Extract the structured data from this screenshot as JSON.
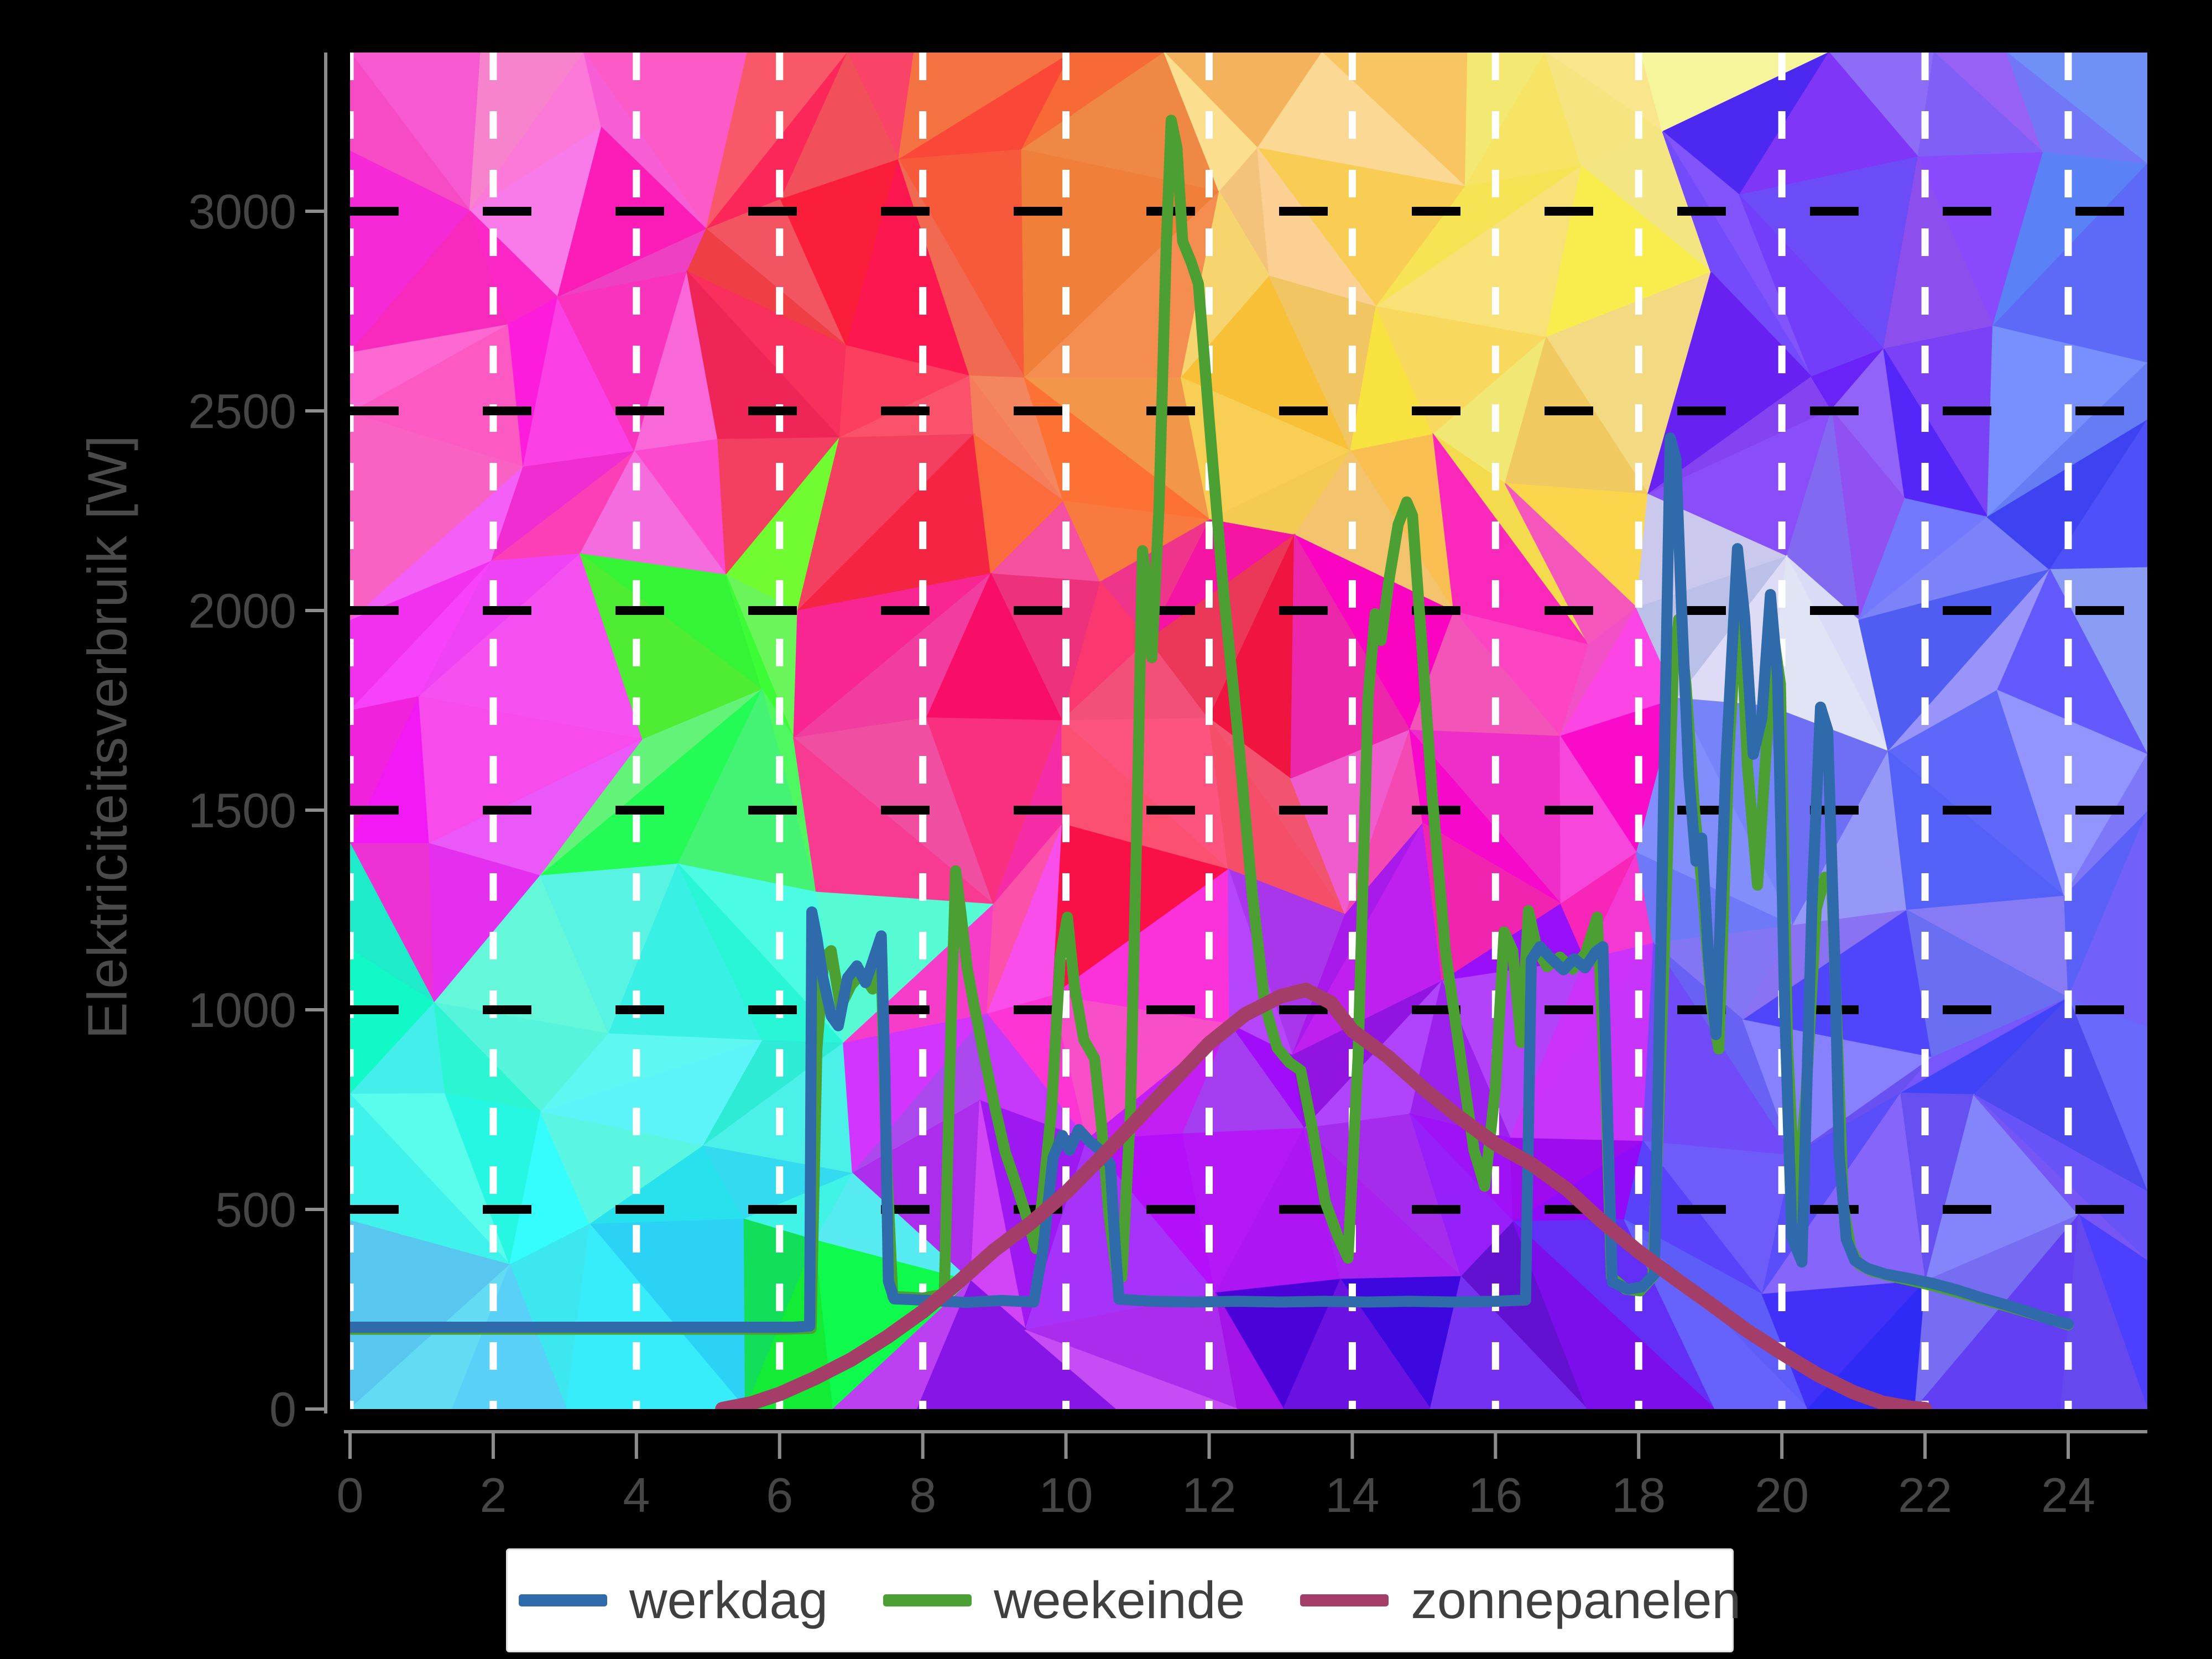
{
  "chart_data": {
    "type": "line",
    "title": "",
    "xlabel": "",
    "ylabel": "Elektriciteitsverbruik [W]",
    "xlim": [
      0,
      25.1
    ],
    "ylim": [
      0,
      3395
    ],
    "xticks": [
      0,
      2,
      4,
      6,
      8,
      10,
      12,
      14,
      16,
      18,
      20,
      22,
      24
    ],
    "yticks": [
      0,
      500,
      1000,
      1500,
      2000,
      2500,
      3000
    ],
    "grid": {
      "horizontal_style": "black dashed",
      "vertical_style": "white dashed"
    },
    "axis_colors": {
      "spine": "#8c8c8c",
      "tick_label": "#464646",
      "axis_label": "#4a4a4a"
    },
    "background_style": "low-poly color mosaic",
    "legend": {
      "position": "bottom-center",
      "entries": [
        {
          "label": "werkdag",
          "color": "#2f6bab"
        },
        {
          "label": "weekeinde",
          "color": "#4c9f33"
        },
        {
          "label": "zonnepanelen",
          "color": "#a43e69"
        }
      ]
    },
    "series": [
      {
        "name": "weekeinde",
        "color": "#4c9f33",
        "width": 20,
        "points": [
          [
            0,
            200
          ],
          [
            1,
            200
          ],
          [
            2,
            200
          ],
          [
            3,
            200
          ],
          [
            4,
            200
          ],
          [
            5,
            200
          ],
          [
            6,
            200
          ],
          [
            6.44,
            202
          ],
          [
            6.52,
            900
          ],
          [
            6.62,
            1130
          ],
          [
            6.72,
            1148
          ],
          [
            6.85,
            1008
          ],
          [
            7,
            1062
          ],
          [
            7.15,
            1092
          ],
          [
            7.3,
            1052
          ],
          [
            7.42,
            1108
          ],
          [
            7.5,
            600
          ],
          [
            7.58,
            282
          ],
          [
            8,
            278
          ],
          [
            8.3,
            288
          ],
          [
            8.4,
            1000
          ],
          [
            8.46,
            1348
          ],
          [
            8.54,
            1230
          ],
          [
            8.62,
            1105
          ],
          [
            8.72,
            1008
          ],
          [
            8.85,
            892
          ],
          [
            9,
            762
          ],
          [
            9.15,
            645
          ],
          [
            9.3,
            565
          ],
          [
            9.45,
            482
          ],
          [
            9.58,
            402
          ],
          [
            9.68,
            540
          ],
          [
            9.8,
            752
          ],
          [
            9.92,
            1130
          ],
          [
            10.02,
            1232
          ],
          [
            10.12,
            1058
          ],
          [
            10.25,
            925
          ],
          [
            10.4,
            878
          ],
          [
            10.5,
            705
          ],
          [
            10.6,
            488
          ],
          [
            10.7,
            352
          ],
          [
            10.78,
            330
          ],
          [
            10.9,
            740
          ],
          [
            11,
            1540
          ],
          [
            11.07,
            2150
          ],
          [
            11.14,
            2060
          ],
          [
            11.2,
            1882
          ],
          [
            11.3,
            2260
          ],
          [
            11.4,
            2905
          ],
          [
            11.47,
            3228
          ],
          [
            11.55,
            3160
          ],
          [
            11.63,
            2925
          ],
          [
            11.75,
            2872
          ],
          [
            11.85,
            2818
          ],
          [
            12,
            2478
          ],
          [
            12.2,
            2048
          ],
          [
            12.4,
            1695
          ],
          [
            12.6,
            1295
          ],
          [
            12.78,
            1010
          ],
          [
            12.95,
            905
          ],
          [
            13.12,
            868
          ],
          [
            13.28,
            848
          ],
          [
            13.45,
            695
          ],
          [
            13.62,
            520
          ],
          [
            13.8,
            432
          ],
          [
            13.94,
            378
          ],
          [
            14.08,
            880
          ],
          [
            14.22,
            1780
          ],
          [
            14.32,
            1992
          ],
          [
            14.4,
            1925
          ],
          [
            14.52,
            2085
          ],
          [
            14.64,
            2215
          ],
          [
            14.76,
            2272
          ],
          [
            14.84,
            2238
          ],
          [
            14.98,
            1892
          ],
          [
            15.12,
            1528
          ],
          [
            15.3,
            1148
          ],
          [
            15.5,
            895
          ],
          [
            15.7,
            648
          ],
          [
            15.85,
            558
          ],
          [
            16,
            805
          ],
          [
            16.12,
            1195
          ],
          [
            16.24,
            1148
          ],
          [
            16.36,
            918
          ],
          [
            16.46,
            1248
          ],
          [
            16.58,
            1152
          ],
          [
            16.72,
            1108
          ],
          [
            16.9,
            1132
          ],
          [
            17.08,
            1102
          ],
          [
            17.26,
            1142
          ],
          [
            17.42,
            1232
          ],
          [
            17.55,
            750
          ],
          [
            17.62,
            330
          ],
          [
            17.82,
            300
          ],
          [
            18.02,
            296
          ],
          [
            18.2,
            332
          ],
          [
            18.36,
            1150
          ],
          [
            18.48,
            1840
          ],
          [
            18.56,
            1978
          ],
          [
            18.66,
            1815
          ],
          [
            18.78,
            1500
          ],
          [
            18.9,
            1282
          ],
          [
            19.02,
            1005
          ],
          [
            19.12,
            902
          ],
          [
            19.26,
            1640
          ],
          [
            19.4,
            2092
          ],
          [
            19.52,
            1610
          ],
          [
            19.66,
            1312
          ],
          [
            19.78,
            1648
          ],
          [
            19.88,
            1942
          ],
          [
            19.98,
            1815
          ],
          [
            20.08,
            905
          ],
          [
            20.2,
            478
          ],
          [
            20.34,
            795
          ],
          [
            20.48,
            1252
          ],
          [
            20.6,
            1332
          ],
          [
            20.7,
            1302
          ],
          [
            20.78,
            905
          ],
          [
            20.86,
            508
          ],
          [
            20.96,
            402
          ],
          [
            21.08,
            362
          ],
          [
            21.25,
            346
          ],
          [
            21.5,
            334
          ],
          [
            21.85,
            320
          ],
          [
            22.2,
            305
          ],
          [
            22.55,
            288
          ],
          [
            22.9,
            270
          ],
          [
            23.25,
            252
          ],
          [
            23.55,
            236
          ],
          [
            23.8,
            222
          ],
          [
            24,
            211
          ]
        ]
      },
      {
        "name": "werkdag",
        "color": "#2f6bab",
        "width": 20,
        "points": [
          [
            0,
            205
          ],
          [
            0.7,
            205
          ],
          [
            1.4,
            205
          ],
          [
            2.1,
            205
          ],
          [
            2.8,
            205
          ],
          [
            3.5,
            205
          ],
          [
            4.2,
            205
          ],
          [
            4.9,
            205
          ],
          [
            5.6,
            205
          ],
          [
            6.2,
            205
          ],
          [
            6.42,
            208
          ],
          [
            6.45,
            1245
          ],
          [
            6.52,
            1180
          ],
          [
            6.6,
            1085
          ],
          [
            6.72,
            985
          ],
          [
            6.82,
            960
          ],
          [
            6.95,
            1080
          ],
          [
            7.08,
            1110
          ],
          [
            7.2,
            1068
          ],
          [
            7.3,
            1120
          ],
          [
            7.42,
            1185
          ],
          [
            7.47,
            850
          ],
          [
            7.52,
            320
          ],
          [
            7.6,
            276
          ],
          [
            8.1,
            272
          ],
          [
            8.6,
            267
          ],
          [
            9.1,
            272
          ],
          [
            9.55,
            268
          ],
          [
            9.68,
            400
          ],
          [
            9.82,
            630
          ],
          [
            9.95,
            685
          ],
          [
            10.05,
            648
          ],
          [
            10.18,
            700
          ],
          [
            10.32,
            672
          ],
          [
            10.5,
            645
          ],
          [
            10.62,
            612
          ],
          [
            10.68,
            430
          ],
          [
            10.74,
            275
          ],
          [
            11.2,
            270
          ],
          [
            11.8,
            268
          ],
          [
            12.4,
            270
          ],
          [
            13,
            268
          ],
          [
            13.6,
            270
          ],
          [
            14.2,
            268
          ],
          [
            14.8,
            270
          ],
          [
            15.4,
            268
          ],
          [
            16,
            270
          ],
          [
            16.42,
            273
          ],
          [
            16.5,
            1125
          ],
          [
            16.62,
            1158
          ],
          [
            16.78,
            1128
          ],
          [
            16.95,
            1100
          ],
          [
            17.1,
            1128
          ],
          [
            17.25,
            1105
          ],
          [
            17.4,
            1145
          ],
          [
            17.5,
            1158
          ],
          [
            17.57,
            700
          ],
          [
            17.63,
            318
          ],
          [
            17.85,
            300
          ],
          [
            18.05,
            306
          ],
          [
            18.22,
            338
          ],
          [
            18.32,
            1250
          ],
          [
            18.44,
            2432
          ],
          [
            18.52,
            2380
          ],
          [
            18.6,
            2000
          ],
          [
            18.7,
            1585
          ],
          [
            18.8,
            1372
          ],
          [
            18.88,
            1430
          ],
          [
            18.98,
            1120
          ],
          [
            19.08,
            938
          ],
          [
            19.22,
            1620
          ],
          [
            19.38,
            2155
          ],
          [
            19.48,
            1985
          ],
          [
            19.6,
            1640
          ],
          [
            19.72,
            1730
          ],
          [
            19.84,
            2040
          ],
          [
            19.94,
            1835
          ],
          [
            20.04,
            1010
          ],
          [
            20.14,
            430
          ],
          [
            20.28,
            368
          ],
          [
            20.42,
            1260
          ],
          [
            20.54,
            1758
          ],
          [
            20.64,
            1700
          ],
          [
            20.74,
            1120
          ],
          [
            20.8,
            640
          ],
          [
            20.9,
            425
          ],
          [
            21.02,
            372
          ],
          [
            21.2,
            352
          ],
          [
            21.45,
            338
          ],
          [
            21.75,
            328
          ],
          [
            22.1,
            315
          ],
          [
            22.45,
            298
          ],
          [
            22.8,
            278
          ],
          [
            23.15,
            260
          ],
          [
            23.5,
            240
          ],
          [
            23.75,
            224
          ],
          [
            24,
            213
          ]
        ]
      },
      {
        "name": "zonnepanelen",
        "color": "#a43e69",
        "width": 26,
        "points": [
          [
            5.2,
            0
          ],
          [
            5.6,
            14
          ],
          [
            6,
            38
          ],
          [
            6.5,
            78
          ],
          [
            7,
            124
          ],
          [
            7.5,
            180
          ],
          [
            8,
            244
          ],
          [
            8.5,
            318
          ],
          [
            9,
            398
          ],
          [
            9.5,
            465
          ],
          [
            10,
            542
          ],
          [
            10.5,
            632
          ],
          [
            11,
            726
          ],
          [
            11.5,
            822
          ],
          [
            12,
            916
          ],
          [
            12.5,
            988
          ],
          [
            13,
            1034
          ],
          [
            13.35,
            1050
          ],
          [
            13.7,
            1018
          ],
          [
            14,
            948
          ],
          [
            14.5,
            882
          ],
          [
            15,
            802
          ],
          [
            15.5,
            730
          ],
          [
            16,
            664
          ],
          [
            16.5,
            614
          ],
          [
            17,
            550
          ],
          [
            17.5,
            468
          ],
          [
            18,
            394
          ],
          [
            18.5,
            328
          ],
          [
            19,
            264
          ],
          [
            19.5,
            198
          ],
          [
            20,
            140
          ],
          [
            20.5,
            86
          ],
          [
            21,
            42
          ],
          [
            21.4,
            16
          ],
          [
            21.8,
            3
          ],
          [
            22,
            0
          ]
        ]
      }
    ]
  }
}
